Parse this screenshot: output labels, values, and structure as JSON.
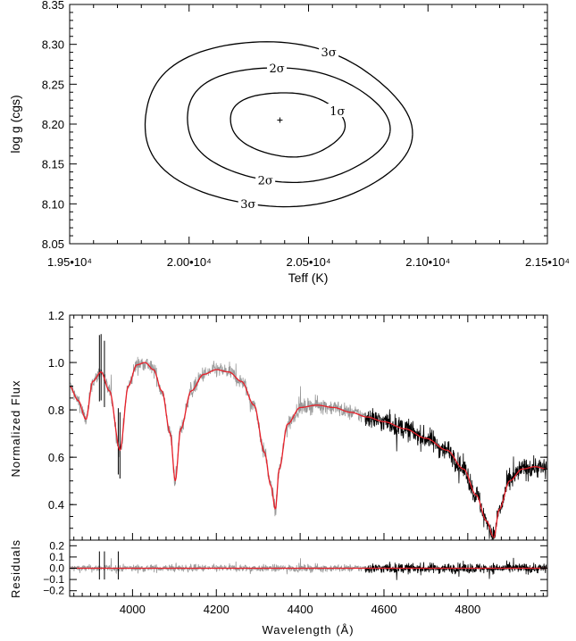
{
  "chart_data": [
    {
      "type": "contour",
      "xlabel": "Teff (K)",
      "ylabel": "log g (cgs)",
      "xlim": [
        19500,
        21500
      ],
      "ylim": [
        8.05,
        8.35
      ],
      "x_tick_labels": [
        "1.95•10⁴",
        "2.00•10⁴",
        "2.05•10⁴",
        "2.10•10⁴",
        "2.15•10⁴"
      ],
      "x_ticks": [
        19500,
        20000,
        20500,
        21000,
        21500
      ],
      "y_ticks": [
        8.05,
        8.1,
        8.15,
        8.2,
        8.25,
        8.3,
        8.35
      ],
      "y_tick_labels": [
        "8.05",
        "8.10",
        "8.15",
        "8.20",
        "8.25",
        "8.30",
        "8.35"
      ],
      "best_fit": {
        "teff": 20380,
        "logg": 8.205
      },
      "contours": [
        {
          "label": "1σ",
          "teff_range": [
            20170,
            20650
          ],
          "logg_range": [
            8.16,
            8.24
          ]
        },
        {
          "label": "2σ",
          "teff_range": [
            19980,
            20830
          ],
          "logg_range": [
            8.128,
            8.271
          ]
        },
        {
          "label": "3σ",
          "teff_range": [
            19800,
            20920
          ],
          "logg_range": [
            8.096,
            8.302
          ]
        }
      ]
    },
    {
      "type": "line",
      "ylabel": "Normalized Flux",
      "xlim": [
        3850,
        4990
      ],
      "ylim": [
        0.25,
        1.2
      ],
      "x_ticks": [
        4000,
        4200,
        4400,
        4600,
        4800
      ],
      "y_ticks": [
        0.4,
        0.6,
        0.8,
        1.0,
        1.2
      ],
      "y_tick_labels": [
        "0.4",
        "0.6",
        "0.8",
        "1.0",
        "1.2"
      ],
      "data_split_wavelength": 4555,
      "series": [
        {
          "color": "#999999",
          "role": "observed spectrum (blue arm)"
        },
        {
          "color": "#000000",
          "role": "observed spectrum (red arm)"
        },
        {
          "color": "#e8202a",
          "role": "model fit"
        }
      ],
      "model_points": {
        "x": [
          3850,
          3870,
          3889,
          3905,
          3925,
          3945,
          3970,
          3990,
          4010,
          4030,
          4050,
          4070,
          4090,
          4102,
          4115,
          4140,
          4170,
          4200,
          4230,
          4260,
          4290,
          4315,
          4330,
          4341,
          4350,
          4370,
          4400,
          4440,
          4480,
          4520,
          4560,
          4600,
          4650,
          4700,
          4750,
          4790,
          4820,
          4845,
          4862,
          4875,
          4900,
          4930,
          4960,
          4990
        ],
        "y": [
          0.9,
          0.84,
          0.76,
          0.92,
          0.96,
          0.88,
          0.63,
          0.9,
          0.99,
          1.0,
          0.97,
          0.88,
          0.7,
          0.5,
          0.72,
          0.88,
          0.95,
          0.97,
          0.96,
          0.92,
          0.82,
          0.62,
          0.48,
          0.38,
          0.55,
          0.74,
          0.81,
          0.82,
          0.81,
          0.79,
          0.77,
          0.75,
          0.72,
          0.68,
          0.63,
          0.55,
          0.44,
          0.33,
          0.26,
          0.38,
          0.5,
          0.55,
          0.56,
          0.55
        ]
      }
    },
    {
      "type": "line",
      "xlabel": "Wavelength (Å)",
      "ylabel": "Residuals",
      "xlim": [
        3850,
        4990
      ],
      "ylim": [
        -0.25,
        0.25
      ],
      "x_ticks": [
        4000,
        4200,
        4400,
        4600,
        4800
      ],
      "x_tick_labels": [
        "4000",
        "4200",
        "4400",
        "4600",
        "4800"
      ],
      "y_ticks": [
        -0.2,
        -0.1,
        0.0,
        0.1,
        0.2
      ],
      "y_tick_labels": [
        "−0.2",
        "−0.1",
        "0.0",
        "0.1",
        "0.2"
      ],
      "zero_line_color": "#e8202a"
    }
  ]
}
